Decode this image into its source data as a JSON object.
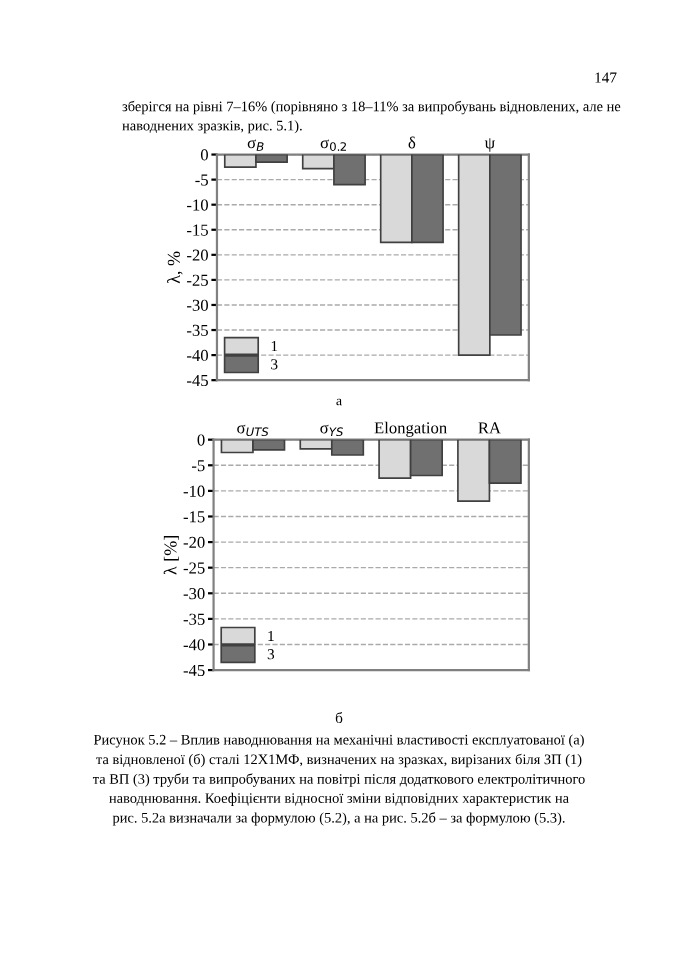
{
  "chart_data": [
    {
      "type": "bar",
      "ylabel": "λ, %",
      "categories": [
        "σ$_{В}$",
        "σ$_{0.2}$",
        "δ",
        "ψ"
      ],
      "series": [
        {
          "name": "1",
          "color": "#d9d9d9",
          "values": [
            -2.5,
            -2.8,
            -17.5,
            -40
          ]
        },
        {
          "name": "3",
          "color": "#707070",
          "values": [
            -1.5,
            -6,
            -17.5,
            -36
          ]
        }
      ],
      "ylim": [
        -45,
        0
      ],
      "yticks": [
        0,
        -5,
        -10,
        -15,
        -20,
        -25,
        -30,
        -35,
        -40,
        -45
      ],
      "grid": "y",
      "legend": "bottom left",
      "annotations": [
        "147",
        "зберігся на рівні 7–16% (порівняно з 18–11% за випробувань відновлених, але не\nнаводнених зразків, рис. 5.1).",
        "а"
      ]
    },
    {
      "type": "bar",
      "ylabel": "λ [%]",
      "categories": [
        "σ$_{UTS}$",
        "σ$_{YS}$",
        "Elongation",
        "RA"
      ],
      "series": [
        {
          "name": "1",
          "color": "#d9d9d9",
          "values": [
            -2.5,
            -1.8,
            -7.5,
            -12
          ]
        },
        {
          "name": "3",
          "color": "#707070",
          "values": [
            -2,
            -3,
            -7,
            -8.5
          ]
        }
      ],
      "ylim": [
        -45,
        0
      ],
      "yticks": [
        0,
        -5,
        -10,
        -15,
        -20,
        -25,
        -30,
        -35,
        -40,
        -45
      ],
      "grid": "y",
      "legend": "bottom left",
      "annotations": [
        "б",
        "Рисунок 5.2 – Вплив наводнювання на механічні властивості експлуатованої (а)\nта відновленої (б) сталі 12Х1МФ, визначених на зразках, вирізаних біля ЗП (1)\nта ВП (3) труби та випробуваних на повітрі після додаткового електролітичного\nнаводнювання. Коефіцієнти відносної зміни відповідних характеристик на\nрис. 5.2а визначали за формулою (5.2), а на рис. 5.2б – за формулою (5.3)."
      ]
    }
  ]
}
